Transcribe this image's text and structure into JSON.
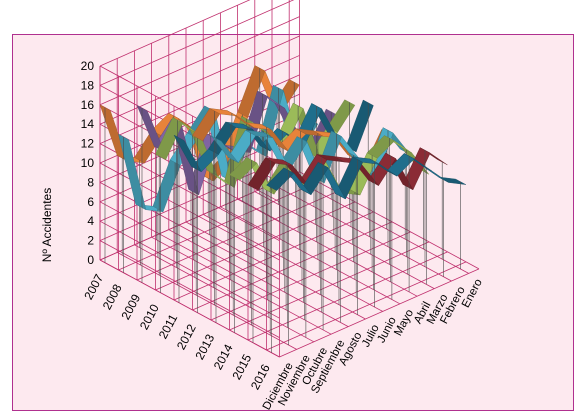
{
  "chart_data": {
    "type": "line",
    "style": "3d-ribbon",
    "ylabel": "Nº Accidentes",
    "ylim": [
      0,
      20
    ],
    "yticks": [
      0,
      2,
      4,
      6,
      8,
      10,
      12,
      14,
      16,
      18,
      20
    ],
    "grid": true,
    "legend": "none",
    "months": [
      "Enero",
      "Febrero",
      "Marzo",
      "Abril",
      "Mayo",
      "Junio",
      "Julio",
      "Agosto",
      "Septiembre",
      "Octubre",
      "Noviembre",
      "Diciembre"
    ],
    "series": [
      {
        "name": "2007",
        "color": "#e8833a",
        "values": [
          10,
          8,
          13,
          9,
          5,
          4,
          10,
          12,
          11,
          9,
          10,
          16
        ]
      },
      {
        "name": "2008",
        "color": "#4bacc6",
        "values": [
          7,
          5,
          12,
          6,
          8,
          5,
          13,
          11,
          9,
          5,
          6,
          14
        ]
      },
      {
        "name": "2009",
        "color": "#8064a2",
        "values": [
          9,
          6,
          8,
          12,
          14,
          9,
          10,
          12,
          7,
          15,
          13,
          18
        ]
      },
      {
        "name": "2010",
        "color": "#9bbb59",
        "values": [
          11,
          9,
          7,
          13,
          10,
          12,
          14,
          8,
          10,
          15,
          17,
          14
        ]
      },
      {
        "name": "2011",
        "color": "#1f6e8c",
        "values": [
          12,
          8,
          10,
          14,
          11,
          13,
          12,
          15,
          16,
          14,
          13,
          17
        ]
      },
      {
        "name": "2012",
        "color": "#e8833a",
        "values": [
          10,
          7,
          9,
          12,
          13,
          14,
          13,
          16,
          17,
          19,
          20,
          18
        ]
      },
      {
        "name": "2013",
        "color": "#4bacc6",
        "values": [
          9,
          12,
          8,
          11,
          14,
          10,
          15,
          13,
          17,
          18,
          16,
          19
        ]
      },
      {
        "name": "2014",
        "color": "#9bbb59",
        "values": [
          8,
          11,
          13,
          12,
          9,
          10,
          14,
          12,
          15,
          13,
          17,
          16
        ]
      },
      {
        "name": "2015",
        "color": "#8b2b35",
        "values": [
          10,
          12,
          9,
          13,
          11,
          14,
          15,
          16,
          14,
          17,
          18,
          16
        ]
      },
      {
        "name": "2016",
        "color": "#1f6e8c",
        "values": [
          9,
          10,
          12,
          14,
          13,
          15,
          16,
          13,
          17,
          15,
          18,
          17
        ]
      }
    ]
  }
}
